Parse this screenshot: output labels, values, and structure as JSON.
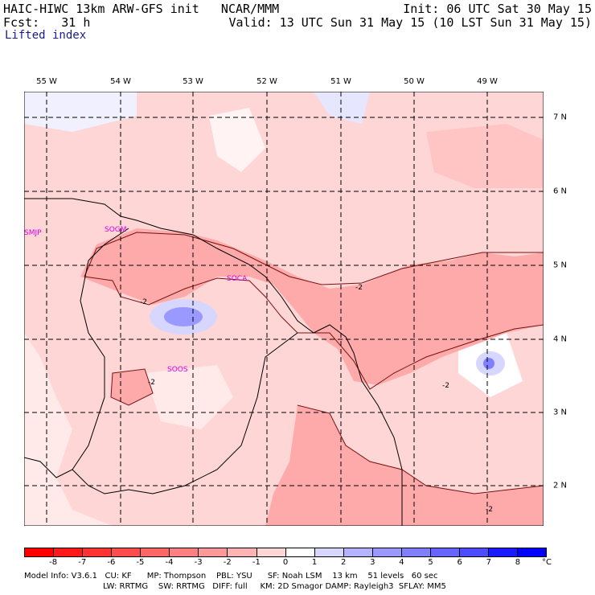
{
  "header": {
    "line1_left": "HAIC-HIWC 13km ARW-GFS init   NCAR/MMM",
    "line1_right": "Init: 06 UTC Sat 30 May 15",
    "line2_left": "Fcst:   31 h",
    "line2_right": "Valid: 13 UTC Sun 31 May 15 (10 LST Sun 31 May 15)",
    "field_name": "Lifted index"
  },
  "longitudes": [
    "55 W",
    "54 W",
    "53 W",
    "52 W",
    "51 W",
    "50 W",
    "49 W"
  ],
  "latitudes": [
    "7 N",
    "6 N",
    "5 N",
    "4 N",
    "3 N",
    "2 N"
  ],
  "stations": [
    "SMJP",
    "SOGM",
    "SOCA",
    "SOOS"
  ],
  "contour_labels": [
    "-2",
    "-2",
    "-2",
    "-2",
    "-2"
  ],
  "colorbar": {
    "labels": [
      "-8",
      "-7",
      "-6",
      "-5",
      "-4",
      "-3",
      "-2",
      "-1",
      "0",
      "1",
      "2",
      "3",
      "4",
      "5",
      "6",
      "7",
      "8"
    ],
    "unit": "°C",
    "colors": [
      "#ff0000",
      "#ff1a1a",
      "#ff3333",
      "#ff4d4d",
      "#ff6666",
      "#ff8080",
      "#ff9999",
      "#ffb3b3",
      "#ffd6d6",
      "#ffffff",
      "#d6d6ff",
      "#b3b3ff",
      "#9999ff",
      "#8080ff",
      "#6666ff",
      "#4d4dff",
      "#1a1aff",
      "#0000ff"
    ]
  },
  "footer": {
    "line1": "Model Info: V3.6.1   CU: KF      MP: Thompson    PBL: YSU      SF: Noah LSM    13 km    51 levels   60 sec",
    "line2": "LW: RRTMG    SW: RRTMG   DIFF: full     KM: 2D Smagor DAMP: Rayleigh3  SFLAY: MM5"
  }
}
